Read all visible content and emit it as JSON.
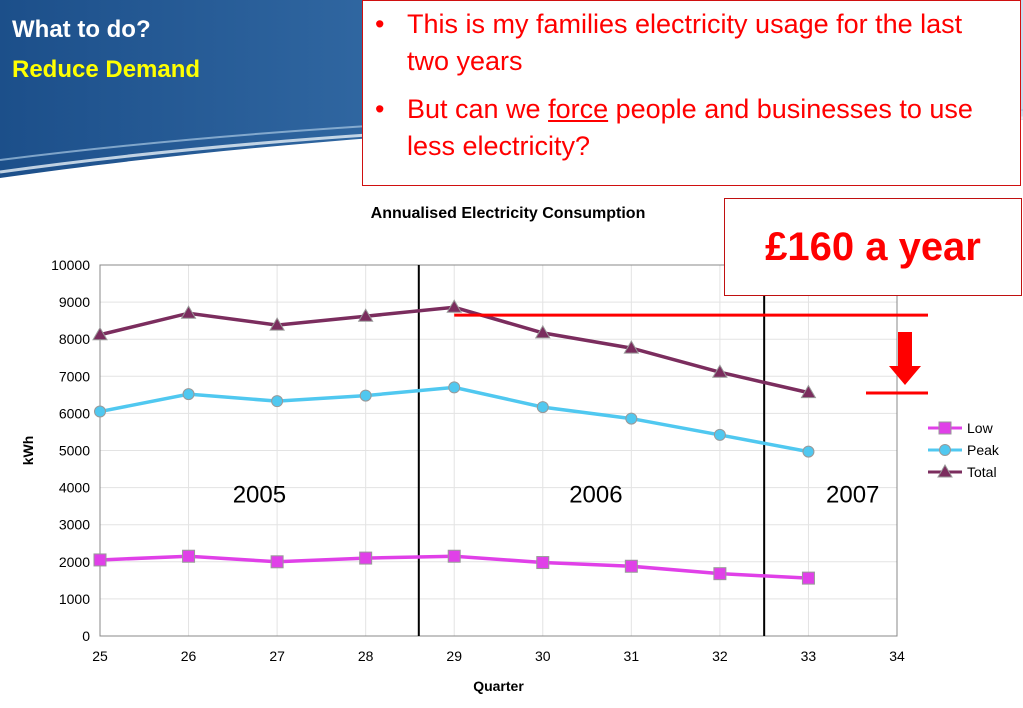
{
  "slide": {
    "title": "What to do?",
    "subtitle": "Reduce Demand",
    "bullets": [
      {
        "text": "This is my families electricity usage for the last two years"
      },
      {
        "before": "But can we ",
        "underlined": "force",
        "after": " people and businesses to use less electricity?"
      }
    ],
    "callout": "£160 a year"
  },
  "colors": {
    "banner": "#1c4f8a",
    "title_text": "#ffffff",
    "subtitle_text": "#ffff00",
    "bullet_text": "#ff0000",
    "callout_text": "#ff0000",
    "low": "#e040e8",
    "peak": "#50c8f0",
    "total": "#7b2d5e",
    "annotation": "#ff0000"
  },
  "chart_data": {
    "type": "line",
    "title": "Annualised Electricity Consumption",
    "xlabel": "Quarter",
    "ylabel": "kWh",
    "xlim": [
      25,
      34
    ],
    "ylim": [
      0,
      10000
    ],
    "x_ticks": [
      25,
      26,
      27,
      28,
      29,
      30,
      31,
      32,
      33,
      34
    ],
    "y_ticks": [
      0,
      1000,
      2000,
      3000,
      4000,
      5000,
      6000,
      7000,
      8000,
      9000,
      10000
    ],
    "grid": true,
    "legend_position": "right",
    "x": [
      25,
      26,
      27,
      28,
      29,
      30,
      31,
      32,
      33
    ],
    "series": [
      {
        "name": "Low",
        "marker": "square",
        "values": [
          2050,
          2150,
          2000,
          2100,
          2150,
          1980,
          1880,
          1680,
          1560
        ]
      },
      {
        "name": "Peak",
        "marker": "circle",
        "values": [
          6050,
          6520,
          6330,
          6480,
          6700,
          6170,
          5860,
          5420,
          4970
        ]
      },
      {
        "name": "Total",
        "marker": "triangle",
        "values": [
          8120,
          8700,
          8380,
          8620,
          8860,
          8170,
          7760,
          7110,
          6560
        ]
      }
    ],
    "dividers": [
      28.6,
      32.5
    ],
    "year_labels": [
      {
        "text": "2005",
        "x": 26.8
      },
      {
        "text": "2006",
        "x": 30.6
      },
      {
        "text": "2007",
        "x": 33.5
      }
    ],
    "annotation": {
      "top_line_value": 8650,
      "bottom_line_value": 6550
    }
  }
}
